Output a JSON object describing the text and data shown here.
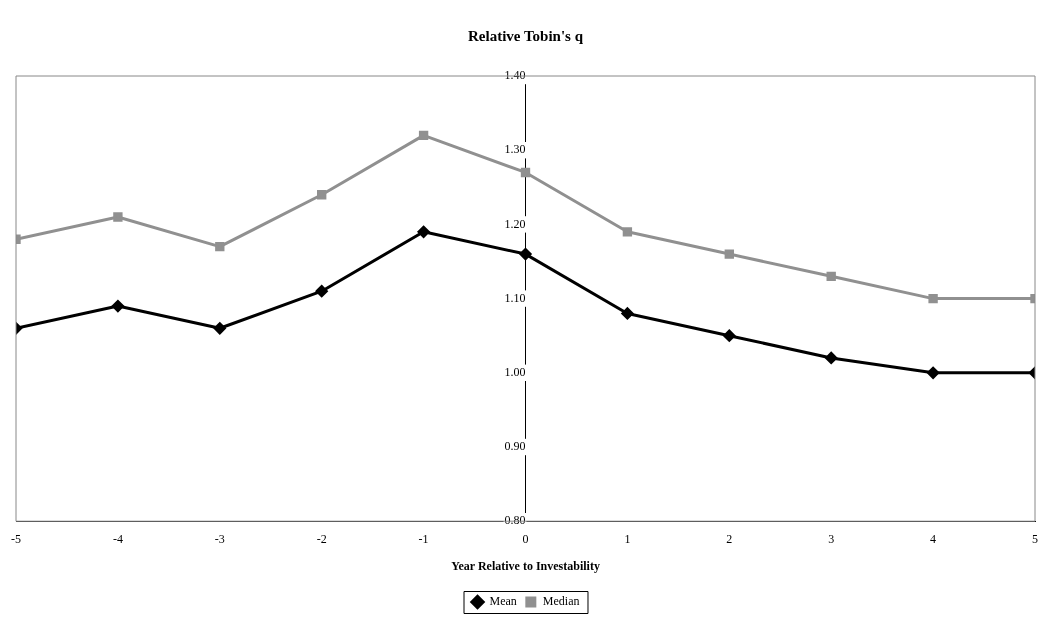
{
  "chart_data": {
    "type": "line",
    "title": "Relative Tobin's q",
    "xlabel": "Year Relative to Investability",
    "x": [
      -5,
      -4,
      -3,
      -2,
      -1,
      0,
      1,
      2,
      3,
      4,
      5
    ],
    "series": [
      {
        "name": "Mean",
        "color": "#000000",
        "marker": "diamond",
        "values": [
          1.06,
          1.09,
          1.06,
          1.11,
          1.19,
          1.16,
          1.08,
          1.05,
          1.02,
          1.0,
          1.0
        ]
      },
      {
        "name": "Median",
        "color": "#909090",
        "marker": "square",
        "values": [
          1.18,
          1.21,
          1.17,
          1.24,
          1.32,
          1.27,
          1.19,
          1.16,
          1.13,
          1.1,
          1.1
        ]
      }
    ],
    "xlim": [
      -5,
      5
    ],
    "xticks": [
      -5,
      -4,
      -3,
      -2,
      -1,
      0,
      1,
      2,
      3,
      4,
      5
    ],
    "ylim": [
      0.8,
      1.4
    ],
    "yticks": [
      {
        "value": 0.8,
        "label": "0.80"
      },
      {
        "value": 0.9,
        "label": "0.90"
      },
      {
        "value": 1.0,
        "label": "1.00"
      },
      {
        "value": 1.1,
        "label": "1.10"
      },
      {
        "value": 1.2,
        "label": "1.20"
      },
      {
        "value": 1.3,
        "label": "1.30"
      },
      {
        "value": 1.4,
        "label": "1.40"
      }
    ],
    "grid": false,
    "legend": "bottom"
  }
}
